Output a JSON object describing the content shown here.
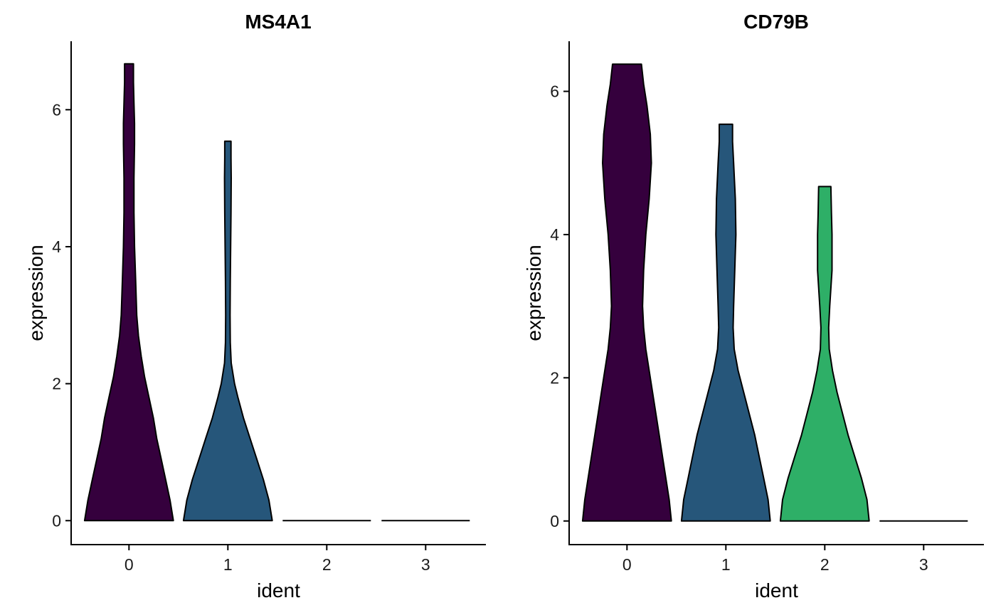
{
  "chart_data": [
    {
      "type": "violin",
      "title": "MS4A1",
      "xlabel": "ident",
      "ylabel": "expression",
      "categories": [
        "0",
        "1",
        "2",
        "3"
      ],
      "ylim": [
        -0.35,
        7.0
      ],
      "yticks": [
        0,
        2,
        4,
        6
      ],
      "grid": false,
      "legend": "none",
      "violins": [
        {
          "category": "0",
          "color": "#35003d",
          "max": 6.67,
          "profile": [
            [
              0,
              0.4
            ],
            [
              0.3,
              0.37
            ],
            [
              0.6,
              0.33
            ],
            [
              0.9,
              0.29
            ],
            [
              1.2,
              0.25
            ],
            [
              1.5,
              0.22
            ],
            [
              1.8,
              0.18
            ],
            [
              2.1,
              0.14
            ],
            [
              2.4,
              0.11
            ],
            [
              2.7,
              0.085
            ],
            [
              3.0,
              0.07
            ],
            [
              3.5,
              0.06
            ],
            [
              4.0,
              0.05
            ],
            [
              4.5,
              0.045
            ],
            [
              5.0,
              0.045
            ],
            [
              5.5,
              0.05
            ],
            [
              5.8,
              0.05
            ],
            [
              6.1,
              0.045
            ],
            [
              6.4,
              0.04
            ],
            [
              6.67,
              0.04
            ]
          ]
        },
        {
          "category": "1",
          "color": "#26567a",
          "max": 5.54,
          "profile": [
            [
              0,
              0.4
            ],
            [
              0.3,
              0.37
            ],
            [
              0.6,
              0.32
            ],
            [
              0.9,
              0.26
            ],
            [
              1.2,
              0.2
            ],
            [
              1.5,
              0.14
            ],
            [
              1.8,
              0.09
            ],
            [
              2.0,
              0.06
            ],
            [
              2.3,
              0.03
            ],
            [
              2.6,
              0.022
            ],
            [
              3.0,
              0.02
            ],
            [
              3.5,
              0.022
            ],
            [
              4.0,
              0.025
            ],
            [
              4.5,
              0.028
            ],
            [
              5.0,
              0.03
            ],
            [
              5.3,
              0.028
            ],
            [
              5.54,
              0.028
            ]
          ]
        },
        {
          "category": "2",
          "color": "#000000",
          "max": 0,
          "profile": []
        },
        {
          "category": "3",
          "color": "#000000",
          "max": 0,
          "profile": []
        }
      ]
    },
    {
      "type": "violin",
      "title": "CD79B",
      "xlabel": "ident",
      "ylabel": "expression",
      "categories": [
        "0",
        "1",
        "2",
        "3"
      ],
      "ylim": [
        -0.33,
        6.7
      ],
      "yticks": [
        0,
        2,
        4,
        6
      ],
      "grid": false,
      "legend": "none",
      "violins": [
        {
          "category": "0",
          "color": "#35003d",
          "max": 6.38,
          "profile": [
            [
              0,
              0.4
            ],
            [
              0.3,
              0.38
            ],
            [
              0.6,
              0.35
            ],
            [
              0.9,
              0.32
            ],
            [
              1.2,
              0.29
            ],
            [
              1.5,
              0.26
            ],
            [
              1.8,
              0.23
            ],
            [
              2.1,
              0.2
            ],
            [
              2.4,
              0.17
            ],
            [
              2.7,
              0.15
            ],
            [
              3.0,
              0.14
            ],
            [
              3.5,
              0.15
            ],
            [
              4.0,
              0.17
            ],
            [
              4.5,
              0.2
            ],
            [
              5.0,
              0.22
            ],
            [
              5.4,
              0.21
            ],
            [
              5.8,
              0.18
            ],
            [
              6.1,
              0.15
            ],
            [
              6.38,
              0.13
            ]
          ]
        },
        {
          "category": "1",
          "color": "#26567a",
          "max": 5.54,
          "profile": [
            [
              0,
              0.4
            ],
            [
              0.3,
              0.38
            ],
            [
              0.6,
              0.34
            ],
            [
              0.9,
              0.3
            ],
            [
              1.2,
              0.26
            ],
            [
              1.5,
              0.21
            ],
            [
              1.8,
              0.16
            ],
            [
              2.1,
              0.11
            ],
            [
              2.4,
              0.075
            ],
            [
              2.7,
              0.065
            ],
            [
              3.0,
              0.07
            ],
            [
              3.5,
              0.08
            ],
            [
              4.0,
              0.09
            ],
            [
              4.5,
              0.085
            ],
            [
              5.0,
              0.07
            ],
            [
              5.3,
              0.06
            ],
            [
              5.54,
              0.06
            ]
          ]
        },
        {
          "category": "2",
          "color": "#2eaf67",
          "max": 4.67,
          "profile": [
            [
              0,
              0.4
            ],
            [
              0.3,
              0.38
            ],
            [
              0.6,
              0.33
            ],
            [
              0.9,
              0.27
            ],
            [
              1.2,
              0.21
            ],
            [
              1.5,
              0.16
            ],
            [
              1.8,
              0.11
            ],
            [
              2.1,
              0.07
            ],
            [
              2.4,
              0.04
            ],
            [
              2.7,
              0.035
            ],
            [
              3.0,
              0.045
            ],
            [
              3.5,
              0.065
            ],
            [
              4.0,
              0.065
            ],
            [
              4.3,
              0.06
            ],
            [
              4.67,
              0.055
            ]
          ]
        },
        {
          "category": "3",
          "color": "#000000",
          "max": 0,
          "profile": []
        }
      ]
    }
  ]
}
